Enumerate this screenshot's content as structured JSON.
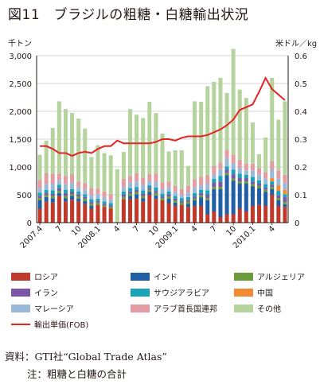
{
  "title": "図11　ブラジルの粗糖・白糖輸出状況",
  "source_note": "資料：GTI社“Global Trade Atlas”",
  "footnote": "注：粗糖と白糖の合計",
  "chart_data": {
    "type": "bar",
    "stacked": true,
    "left_axis_unit": "千トン",
    "right_axis_unit": "米ドル／kg",
    "ylim": [
      0,
      3000
    ],
    "y2lim": [
      0,
      0.6
    ],
    "yticks": [
      "0",
      "500",
      "1,000",
      "1,500",
      "2,000",
      "2,500",
      "3,000"
    ],
    "y2ticks": [
      "0",
      "0.1",
      "0.2",
      "0.3",
      "0.4",
      "0.5",
      "0.6"
    ],
    "grid": "horizontal",
    "categories": [
      "2007.4",
      "2007.5",
      "2007.6",
      "2007.7",
      "2007.8",
      "2007.9",
      "2007.10",
      "2007.11",
      "2007.12",
      "2008.1",
      "2008.2",
      "2008.3",
      "2008.4",
      "2008.5",
      "2008.6",
      "2008.7",
      "2008.8",
      "2008.9",
      "2008.10",
      "2008.11",
      "2008.12",
      "2009.1",
      "2009.2",
      "2009.3",
      "2009.4",
      "2009.5",
      "2009.6",
      "2009.7",
      "2009.8",
      "2009.9",
      "2009.10",
      "2009.11",
      "2009.12",
      "2010.1",
      "2010.2",
      "2010.3",
      "2010.4",
      "2010.5",
      "2010.6"
    ],
    "xtick_labels": [
      {
        "index": 0,
        "label": "2007.4"
      },
      {
        "index": 3,
        "label": "7"
      },
      {
        "index": 6,
        "label": "10"
      },
      {
        "index": 9,
        "label": "2008.1"
      },
      {
        "index": 12,
        "label": "4"
      },
      {
        "index": 15,
        "label": "7"
      },
      {
        "index": 18,
        "label": "10"
      },
      {
        "index": 21,
        "label": "2009.1"
      },
      {
        "index": 24,
        "label": "4"
      },
      {
        "index": 27,
        "label": "7"
      },
      {
        "index": 30,
        "label": "10"
      },
      {
        "index": 33,
        "label": "2010.1"
      },
      {
        "index": 36,
        "label": "4"
      }
    ],
    "series": [
      {
        "name": "ロシア",
        "color": "#c0392b",
        "values": [
          250,
          380,
          360,
          480,
          380,
          410,
          380,
          330,
          250,
          320,
          280,
          250,
          0,
          420,
          420,
          430,
          380,
          500,
          430,
          400,
          350,
          300,
          320,
          280,
          300,
          300,
          150,
          200,
          100,
          150,
          150,
          250,
          200,
          300,
          320,
          300,
          500,
          300,
          280
        ]
      },
      {
        "name": "インド",
        "color": "#1f5fa5",
        "values": [
          150,
          80,
          80,
          50,
          60,
          70,
          50,
          60,
          50,
          0,
          0,
          0,
          0,
          0,
          60,
          80,
          60,
          50,
          60,
          0,
          80,
          60,
          0,
          60,
          100,
          150,
          250,
          400,
          500,
          700,
          600,
          450,
          500,
          350,
          300,
          250,
          100,
          100,
          50
        ]
      },
      {
        "name": "アルジェリア",
        "color": "#6a9a3a",
        "values": [
          40,
          40,
          40,
          40,
          40,
          30,
          40,
          40,
          40,
          40,
          30,
          30,
          0,
          40,
          40,
          40,
          40,
          40,
          40,
          40,
          40,
          40,
          40,
          40,
          30,
          40,
          40,
          40,
          40,
          40,
          40,
          40,
          40,
          40,
          40,
          40,
          40,
          40,
          40
        ]
      },
      {
        "name": "イラン",
        "color": "#7a56a8",
        "values": [
          40,
          40,
          40,
          50,
          50,
          40,
          40,
          30,
          30,
          30,
          30,
          30,
          0,
          40,
          40,
          40,
          40,
          30,
          40,
          30,
          40,
          30,
          30,
          30,
          40,
          40,
          60,
          80,
          100,
          60,
          80,
          60,
          60,
          50,
          40,
          40,
          40,
          50,
          80
        ]
      },
      {
        "name": "サウジアラビア",
        "color": "#17a3b8",
        "values": [
          60,
          50,
          60,
          60,
          60,
          50,
          50,
          50,
          50,
          40,
          40,
          40,
          0,
          60,
          60,
          50,
          60,
          50,
          60,
          50,
          50,
          50,
          50,
          50,
          60,
          60,
          80,
          70,
          100,
          60,
          80,
          80,
          60,
          80,
          60,
          60,
          60,
          80,
          60
        ]
      },
      {
        "name": "中国",
        "color": "#f18a33",
        "values": [
          0,
          0,
          0,
          0,
          0,
          0,
          0,
          0,
          0,
          0,
          0,
          0,
          0,
          0,
          0,
          0,
          0,
          0,
          0,
          0,
          0,
          0,
          0,
          0,
          0,
          0,
          0,
          0,
          0,
          0,
          0,
          0,
          0,
          0,
          0,
          0,
          60,
          100,
          80
        ]
      },
      {
        "name": "マレーシア",
        "color": "#9ab8d8",
        "values": [
          80,
          100,
          120,
          80,
          100,
          120,
          80,
          80,
          80,
          80,
          80,
          60,
          0,
          80,
          100,
          100,
          100,
          80,
          100,
          80,
          80,
          80,
          60,
          80,
          100,
          80,
          120,
          80,
          120,
          150,
          120,
          100,
          80,
          120,
          100,
          100,
          150,
          120,
          120
        ]
      },
      {
        "name": "アラブ首長国連邦",
        "color": "#e39ca2",
        "values": [
          150,
          200,
          180,
          120,
          150,
          150,
          100,
          120,
          120,
          100,
          100,
          100,
          0,
          150,
          120,
          150,
          120,
          120,
          150,
          120,
          100,
          100,
          100,
          120,
          150,
          150,
          150,
          150,
          120,
          150,
          150,
          150,
          120,
          120,
          120,
          120,
          150,
          150,
          150
        ]
      },
      {
        "name": "その他",
        "color": "#b5d39c",
        "values": [
          450,
          580,
          820,
          1300,
          1200,
          1100,
          1130,
          980,
          560,
          780,
          690,
          700,
          960,
          480,
          1200,
          1050,
          1080,
          1300,
          1090,
          880,
          540,
          640,
          700,
          360,
          1400,
          1350,
          1600,
          1510,
          1520,
          1020,
          1900,
          1260,
          1180,
          740,
          250,
          620,
          1500,
          910,
          1320
        ]
      }
    ],
    "line": {
      "name": "輸出単価(FOB)",
      "color": "#e52420",
      "axis": "right",
      "values": [
        0.275,
        0.275,
        0.265,
        0.25,
        0.25,
        0.24,
        0.25,
        0.255,
        0.25,
        0.265,
        0.275,
        0.275,
        0.295,
        0.285,
        0.285,
        0.285,
        0.285,
        0.285,
        0.29,
        0.3,
        0.3,
        0.295,
        0.305,
        0.31,
        0.31,
        0.31,
        0.315,
        0.325,
        0.335,
        0.35,
        0.37,
        0.405,
        0.415,
        0.425,
        0.47,
        0.52,
        0.48,
        0.46,
        0.44
      ]
    }
  },
  "legend": [
    {
      "label": "ロシア",
      "color": "#c0392b",
      "kind": "bar"
    },
    {
      "label": "インド",
      "color": "#1f5fa5",
      "kind": "bar"
    },
    {
      "label": "アルジェリア",
      "color": "#6a9a3a",
      "kind": "bar"
    },
    {
      "label": "イラン",
      "color": "#7a56a8",
      "kind": "bar"
    },
    {
      "label": "サウジアラビア",
      "color": "#17a3b8",
      "kind": "bar"
    },
    {
      "label": "中国",
      "color": "#f18a33",
      "kind": "bar"
    },
    {
      "label": "マレーシア",
      "color": "#9ab8d8",
      "kind": "bar"
    },
    {
      "label": "アラブ首長国連邦",
      "color": "#e39ca2",
      "kind": "bar"
    },
    {
      "label": "その他",
      "color": "#b5d39c",
      "kind": "bar"
    },
    {
      "label": "輸出単価(FOB)",
      "color": "#e52420",
      "kind": "line"
    }
  ]
}
